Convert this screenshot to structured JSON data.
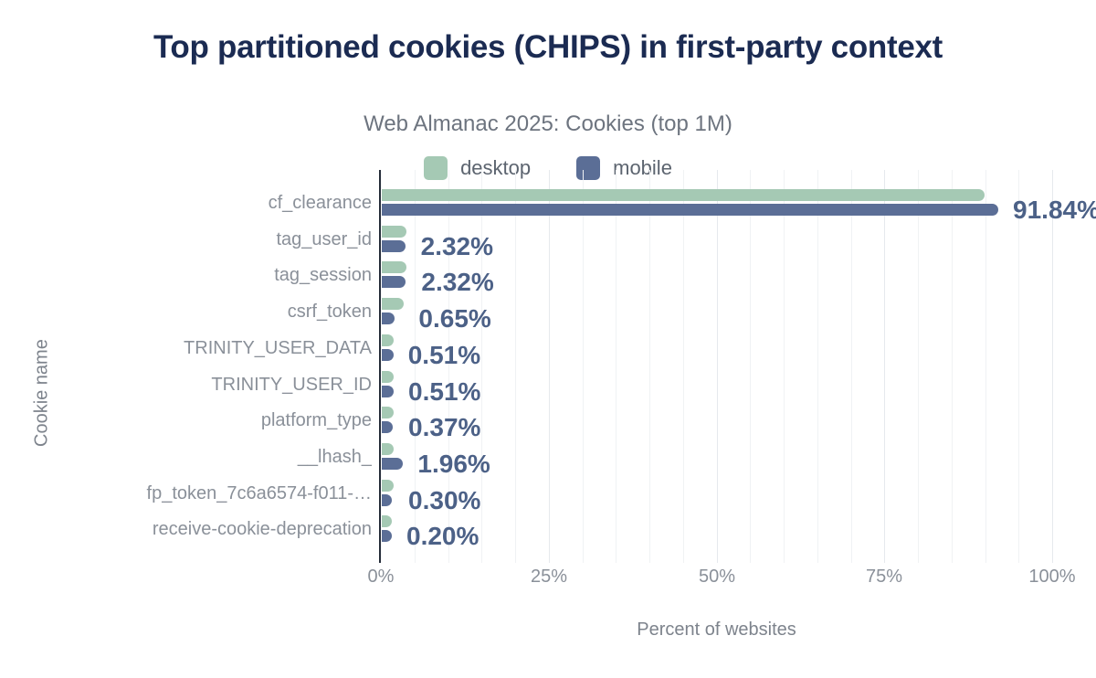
{
  "title": "Top partitioned cookies (CHIPS) in first-party context",
  "subtitle": "Web Almanac 2025: Cookies (top 1M)",
  "legend": [
    {
      "label": "desktop",
      "color": "#a5c9b4"
    },
    {
      "label": "mobile",
      "color": "#5b6e96"
    }
  ],
  "colors": {
    "title": "#1b2b52",
    "desktop_bar": "#a5c9b4",
    "mobile_bar": "#5b6e96",
    "value_label": "#4c6187",
    "axis_line": "#252c39",
    "muted_text": "#8a9099"
  },
  "chart_data": {
    "type": "bar",
    "orientation": "horizontal",
    "title": "Top partitioned cookies (CHIPS) in first-party context",
    "subtitle": "Web Almanac 2025: Cookies (top 1M)",
    "xlabel": "Percent of websites",
    "ylabel": "Cookie name",
    "xlim": [
      0,
      100
    ],
    "x_ticks": [
      "0%",
      "25%",
      "50%",
      "75%",
      "100%"
    ],
    "grid": "vertical minor every 5%",
    "legend_position": "top-center",
    "categories": [
      "cf_clearance",
      "tag_user_id",
      "tag_session",
      "csrf_token",
      "TRINITY_USER_DATA",
      "TRINITY_USER_ID",
      "platform_type",
      "__lhash_",
      "fp_token_7c6a6574-f011-…",
      "receive-cookie-deprecation"
    ],
    "series": [
      {
        "name": "desktop",
        "values": [
          89.8,
          2.4,
          2.5,
          2.1,
          0.5,
          0.55,
          0.55,
          0.6,
          0.55,
          0.15
        ]
      },
      {
        "name": "mobile",
        "values": [
          91.84,
          2.32,
          2.32,
          0.65,
          0.51,
          0.51,
          0.37,
          1.96,
          0.3,
          0.2
        ]
      }
    ],
    "value_labels": [
      "91.84%",
      "2.32%",
      "2.32%",
      "0.65%",
      "0.51%",
      "0.51%",
      "0.37%",
      "1.96%",
      "0.30%",
      "0.20%"
    ],
    "value_labels_series": "mobile"
  }
}
